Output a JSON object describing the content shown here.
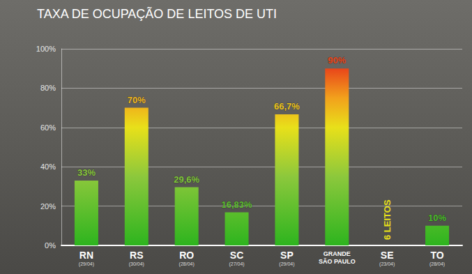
{
  "chart_data": {
    "type": "bar",
    "title": "TAXA DE OCUPAÇÃO DE LEITOS DE UTI",
    "categories": [
      "RN",
      "RS",
      "RO",
      "SC",
      "SP",
      "GRANDE SÃO PAULO",
      "SE",
      "TO"
    ],
    "dates": [
      "(29/04)",
      "(30/04)",
      "(28/04)",
      "(27/04)",
      "(29/04)",
      null,
      "(23/04)",
      "(28/04)"
    ],
    "values": [
      33,
      70,
      29.6,
      16.83,
      66.7,
      90,
      null,
      10
    ],
    "value_labels": [
      "33%",
      "70%",
      "29,6%",
      "16,83%",
      "66,7%",
      "90%",
      null,
      "10%"
    ],
    "data_labels": true,
    "annotations": [
      {
        "category": "SE",
        "text": "6 LEITOS"
      }
    ],
    "ylim": [
      0,
      100
    ],
    "yticks": [
      {
        "value": 0,
        "label": "0%"
      },
      {
        "value": 20,
        "label": "20%"
      },
      {
        "value": 40,
        "label": "40%"
      },
      {
        "value": 60,
        "label": "60%"
      },
      {
        "value": 80,
        "label": "80%"
      },
      {
        "value": 100,
        "label": "100%"
      }
    ],
    "grid": true
  }
}
